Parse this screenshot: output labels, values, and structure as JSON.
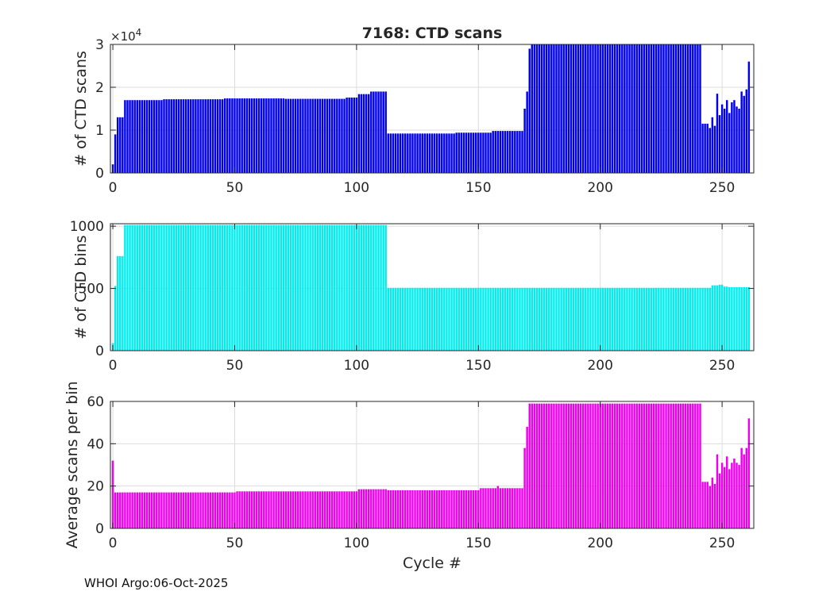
{
  "chart_data": [
    {
      "type": "bar",
      "title": "7168: CTD scans",
      "xlabel": "",
      "ylabel": "# of CTD scans",
      "xlim": [
        -1,
        263
      ],
      "ylim": [
        0,
        30000
      ],
      "exponent_label": "×10",
      "exponent_power": "4",
      "xticks": [
        0,
        50,
        100,
        150,
        200,
        250
      ],
      "xtick_labels": [
        "0",
        "50",
        "100",
        "150",
        "200",
        "250"
      ],
      "yticks": [
        0,
        10000,
        20000,
        30000
      ],
      "ytick_labels": [
        "0",
        "1",
        "2",
        "3"
      ],
      "grid": true,
      "color": "#0000ee",
      "segments": [
        {
          "from": 0,
          "to": 0,
          "value": 2000
        },
        {
          "from": 1,
          "to": 1,
          "value": 9000
        },
        {
          "from": 2,
          "to": 4,
          "value": 13000
        },
        {
          "from": 5,
          "to": 20,
          "value": 17000
        },
        {
          "from": 21,
          "to": 45,
          "value": 17200
        },
        {
          "from": 46,
          "to": 70,
          "value": 17400
        },
        {
          "from": 71,
          "to": 95,
          "value": 17300
        },
        {
          "from": 96,
          "to": 100,
          "value": 17600
        },
        {
          "from": 101,
          "to": 105,
          "value": 18400
        },
        {
          "from": 106,
          "to": 112,
          "value": 19000
        },
        {
          "from": 113,
          "to": 140,
          "value": 9200
        },
        {
          "from": 141,
          "to": 155,
          "value": 9400
        },
        {
          "from": 156,
          "to": 168,
          "value": 9800
        },
        {
          "from": 169,
          "to": 169,
          "value": 15000
        },
        {
          "from": 170,
          "to": 170,
          "value": 19000
        },
        {
          "from": 171,
          "to": 171,
          "value": 29000
        },
        {
          "from": 172,
          "to": 241,
          "value": 30000
        },
        {
          "from": 242,
          "to": 244,
          "value": 11500
        },
        {
          "from": 245,
          "to": 245,
          "value": 10500
        },
        {
          "from": 246,
          "to": 246,
          "value": 13000
        },
        {
          "from": 247,
          "to": 247,
          "value": 11000
        },
        {
          "from": 248,
          "to": 248,
          "value": 18500
        },
        {
          "from": 249,
          "to": 249,
          "value": 13500
        },
        {
          "from": 250,
          "to": 250,
          "value": 16000
        },
        {
          "from": 251,
          "to": 251,
          "value": 15000
        },
        {
          "from": 252,
          "to": 252,
          "value": 17000
        },
        {
          "from": 253,
          "to": 253,
          "value": 14000
        },
        {
          "from": 254,
          "to": 254,
          "value": 16500
        },
        {
          "from": 255,
          "to": 255,
          "value": 17000
        },
        {
          "from": 256,
          "to": 256,
          "value": 15500
        },
        {
          "from": 257,
          "to": 257,
          "value": 15000
        },
        {
          "from": 258,
          "to": 258,
          "value": 19000
        },
        {
          "from": 259,
          "to": 259,
          "value": 18000
        },
        {
          "from": 260,
          "to": 260,
          "value": 19500
        },
        {
          "from": 261,
          "to": 261,
          "value": 26000
        }
      ]
    },
    {
      "type": "bar",
      "title": "",
      "xlabel": "",
      "ylabel": "# of CTD bins",
      "xlim": [
        -1,
        263
      ],
      "ylim": [
        0,
        1020
      ],
      "xticks": [
        0,
        50,
        100,
        150,
        200,
        250
      ],
      "xtick_labels": [
        "0",
        "50",
        "100",
        "150",
        "200",
        "250"
      ],
      "yticks": [
        0,
        500,
        1000
      ],
      "ytick_labels": [
        "0",
        "500",
        "1000"
      ],
      "grid": true,
      "color": "#00eeee",
      "segments": [
        {
          "from": 0,
          "to": 0,
          "value": 60
        },
        {
          "from": 1,
          "to": 1,
          "value": 520
        },
        {
          "from": 2,
          "to": 4,
          "value": 760
        },
        {
          "from": 5,
          "to": 112,
          "value": 1010
        },
        {
          "from": 113,
          "to": 245,
          "value": 505
        },
        {
          "from": 246,
          "to": 248,
          "value": 525
        },
        {
          "from": 249,
          "to": 250,
          "value": 530
        },
        {
          "from": 251,
          "to": 252,
          "value": 515
        },
        {
          "from": 253,
          "to": 261,
          "value": 510
        }
      ]
    },
    {
      "type": "bar",
      "title": "",
      "xlabel": "Cycle #",
      "ylabel": "Average scans per bin",
      "xlim": [
        -1,
        263
      ],
      "ylim": [
        0,
        60
      ],
      "xticks": [
        0,
        50,
        100,
        150,
        200,
        250
      ],
      "xtick_labels": [
        "0",
        "50",
        "100",
        "150",
        "200",
        "250"
      ],
      "yticks": [
        0,
        20,
        40,
        60
      ],
      "ytick_labels": [
        "0",
        "20",
        "40",
        "60"
      ],
      "grid": true,
      "color": "#ee00ee",
      "segments": [
        {
          "from": 0,
          "to": 0,
          "value": 32
        },
        {
          "from": 1,
          "to": 50,
          "value": 17
        },
        {
          "from": 51,
          "to": 100,
          "value": 17.5
        },
        {
          "from": 101,
          "to": 112,
          "value": 18.5
        },
        {
          "from": 113,
          "to": 150,
          "value": 18
        },
        {
          "from": 151,
          "to": 157,
          "value": 19
        },
        {
          "from": 158,
          "to": 158,
          "value": 20
        },
        {
          "from": 159,
          "to": 168,
          "value": 19
        },
        {
          "from": 169,
          "to": 169,
          "value": 38
        },
        {
          "from": 170,
          "to": 170,
          "value": 48
        },
        {
          "from": 171,
          "to": 241,
          "value": 59
        },
        {
          "from": 242,
          "to": 244,
          "value": 22
        },
        {
          "from": 245,
          "to": 245,
          "value": 20
        },
        {
          "from": 246,
          "to": 246,
          "value": 24
        },
        {
          "from": 247,
          "to": 247,
          "value": 21
        },
        {
          "from": 248,
          "to": 248,
          "value": 35
        },
        {
          "from": 249,
          "to": 249,
          "value": 26
        },
        {
          "from": 250,
          "to": 250,
          "value": 31
        },
        {
          "from": 251,
          "to": 251,
          "value": 29
        },
        {
          "from": 252,
          "to": 252,
          "value": 34
        },
        {
          "from": 253,
          "to": 253,
          "value": 28
        },
        {
          "from": 254,
          "to": 254,
          "value": 31
        },
        {
          "from": 255,
          "to": 255,
          "value": 33
        },
        {
          "from": 256,
          "to": 256,
          "value": 31
        },
        {
          "from": 257,
          "to": 257,
          "value": 30
        },
        {
          "from": 258,
          "to": 258,
          "value": 38
        },
        {
          "from": 259,
          "to": 259,
          "value": 35
        },
        {
          "from": 260,
          "to": 260,
          "value": 38
        },
        {
          "from": 261,
          "to": 261,
          "value": 52
        }
      ]
    }
  ],
  "footer": "WHOI Argo:06-Oct-2025"
}
